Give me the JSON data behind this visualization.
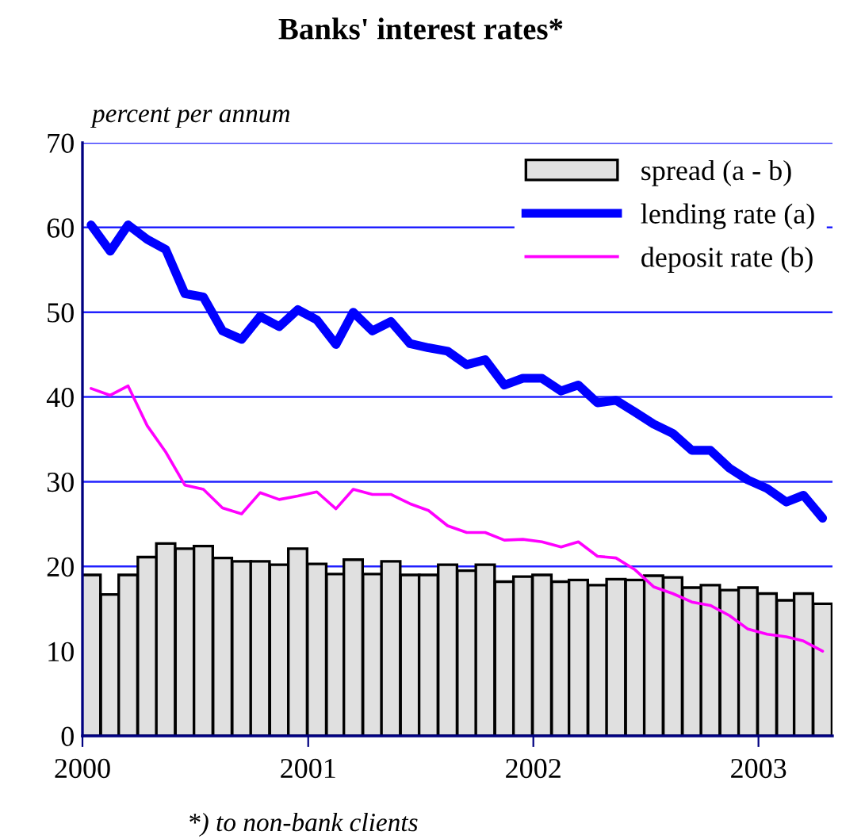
{
  "chart_data": {
    "type": "bar",
    "title": "Banks' interest rates*",
    "ylabel": "percent per annum",
    "annotations": [
      "*) to non-bank clients"
    ],
    "x": [
      "2000-01-15",
      "2000-02-15",
      "2000-03-15",
      "2000-04-15",
      "2000-05-15",
      "2000-06-15",
      "2000-07-15",
      "2000-08-15",
      "2000-09-15",
      "2000-10-15",
      "2000-11-15",
      "2000-12-15",
      "2001-01-15",
      "2001-02-15",
      "2001-03-15",
      "2001-04-15",
      "2001-05-15",
      "2001-06-15",
      "2001-07-15",
      "2001-08-15",
      "2001-09-15",
      "2001-10-15",
      "2001-11-15",
      "2001-12-15",
      "2002-01-15",
      "2002-02-15",
      "2002-03-15",
      "2002-04-15",
      "2002-05-15",
      "2002-06-15",
      "2002-07-15",
      "2002-08-15",
      "2002-09-15",
      "2002-10-15",
      "2002-11-15",
      "2002-12-15",
      "2003-01-15",
      "2003-02-15",
      "2003-03-15",
      "2003-04-15"
    ],
    "series": [
      {
        "name": "spread (a - b)",
        "color": "#e0e0e0",
        "values": [
          19.0,
          16.7,
          19.0,
          21.1,
          22.7,
          22.1,
          22.4,
          21.0,
          20.6,
          20.6,
          20.2,
          22.1,
          20.3,
          19.1,
          20.8,
          19.1,
          20.6,
          19.0,
          19.0,
          20.2,
          19.5,
          20.2,
          18.2,
          18.8,
          19.0,
          18.2,
          18.4,
          17.8,
          18.5,
          18.4,
          18.9,
          18.7,
          17.5,
          17.8,
          17.2,
          17.5,
          16.8,
          16.0,
          16.8,
          15.6
        ]
      },
      {
        "name": "lending rate (a)",
        "type": "line",
        "color": "#0000ff",
        "values": [
          60.3,
          57.2,
          60.3,
          58.6,
          57.4,
          52.2,
          51.8,
          47.8,
          46.8,
          49.5,
          48.3,
          50.3,
          49.1,
          46.2,
          50.0,
          47.8,
          48.9,
          46.3,
          45.8,
          45.4,
          43.8,
          44.4,
          41.4,
          42.2,
          42.2,
          40.7,
          41.4,
          39.3,
          39.6,
          38.2,
          36.8,
          35.7,
          33.7,
          33.7,
          31.6,
          30.2,
          29.2,
          27.6,
          28.4,
          25.7
        ]
      },
      {
        "name": "deposit rate (b)",
        "type": "line",
        "color": "#ff00ff",
        "values": [
          41.0,
          40.2,
          41.3,
          36.6,
          33.5,
          29.6,
          29.1,
          26.9,
          26.2,
          28.7,
          27.9,
          28.3,
          28.8,
          26.8,
          29.1,
          28.5,
          28.5,
          27.4,
          26.6,
          24.8,
          24.0,
          24.0,
          23.1,
          23.2,
          22.9,
          22.3,
          22.9,
          21.2,
          21.0,
          19.6,
          17.6,
          16.8,
          15.8,
          15.4,
          14.2,
          12.6,
          12.0,
          11.7,
          11.2,
          10.0
        ]
      }
    ],
    "xlim": [
      "2000-01-01",
      "2003-05-01"
    ],
    "xticks": [
      "2000",
      "2001",
      "2002",
      "2003"
    ],
    "ylim": [
      0,
      70
    ],
    "yticks": [
      0,
      10,
      20,
      30,
      40,
      50,
      60,
      70
    ],
    "grid": "y",
    "legend": "top right"
  }
}
